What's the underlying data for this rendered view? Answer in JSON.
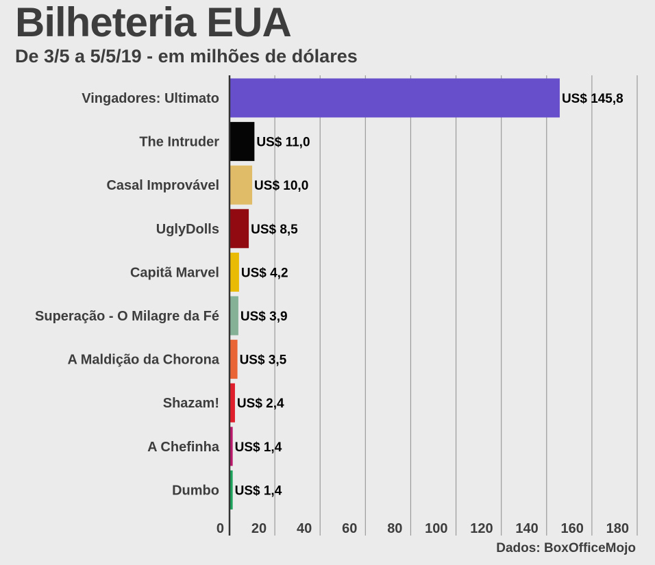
{
  "chart_data": {
    "type": "bar",
    "orientation": "horizontal",
    "title": "Bilheteria EUA",
    "subtitle": "De 3/5 a 5/5/19 - em milhões de dólares",
    "source": "Dados: BoxOfficeMojo",
    "xlim": [
      0,
      180
    ],
    "xticks": [
      0,
      20,
      40,
      60,
      80,
      100,
      120,
      140,
      160,
      180
    ],
    "grid": true,
    "categories": [
      "Vingadores: Ultimato",
      "The Intruder",
      "Casal Improvável",
      "UglyDolls",
      "Capitã Marvel",
      "Superação - O Milagre da Fé",
      "A Maldição da Chorona",
      "Shazam!",
      "A Chefinha",
      "Dumbo"
    ],
    "values": [
      145.8,
      11.0,
      10.0,
      8.5,
      4.2,
      3.9,
      3.5,
      2.4,
      1.4,
      1.4
    ],
    "value_labels": [
      "US$ 145,8",
      "US$ 11,0",
      "US$ 10,0",
      "US$ 8,5",
      "US$ 4,2",
      "US$ 3,9",
      "US$ 3,5",
      "US$ 2,4",
      "US$ 1,4",
      "US$ 1,4"
    ],
    "colors": [
      "#674fcc",
      "#050505",
      "#e0bb68",
      "#920a11",
      "#eabb05",
      "#85b197",
      "#e96536",
      "#df1f2c",
      "#b8196a",
      "#1ea35c"
    ]
  }
}
